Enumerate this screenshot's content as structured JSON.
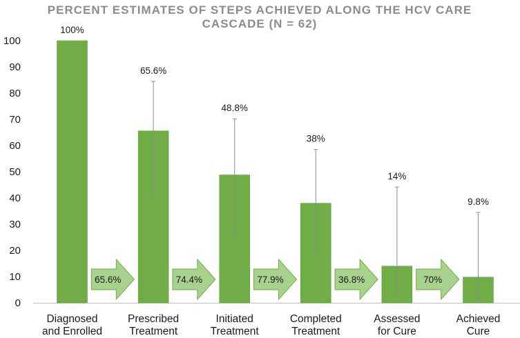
{
  "chart_data": {
    "type": "bar",
    "title_lines": [
      "PERCENT ESTIMATES OF STEPS ACHIEVED ALONG THE HCV CARE",
      "CASCADE (N = 62)"
    ],
    "categories": [
      [
        "Diagnosed",
        "and Enrolled"
      ],
      [
        "Prescribed",
        "Treatment"
      ],
      [
        "Initiated",
        "Treatment"
      ],
      [
        "Completed",
        "Treatment"
      ],
      [
        "Assessed",
        "for Cure"
      ],
      [
        "Achieved",
        "Cure"
      ]
    ],
    "values": [
      100,
      65.6,
      48.8,
      38,
      14,
      9.8
    ],
    "data_labels": [
      "100%",
      "65.6%",
      "48.8%",
      "38%",
      "14%",
      "9.8%"
    ],
    "error_bars": [
      null,
      [
        41.5,
        84.5
      ],
      [
        26,
        70.2
      ],
      [
        20,
        58.5
      ],
      [
        3.5,
        44.2
      ],
      [
        1.5,
        34.5
      ]
    ],
    "step_conversions": [
      "65.6%",
      "74.4%",
      "77.9%",
      "36.8%",
      "70%"
    ],
    "ylim": [
      0,
      100
    ],
    "yticks": [
      0,
      10,
      20,
      30,
      40,
      50,
      60,
      70,
      80,
      90,
      100
    ],
    "xlabel": "",
    "ylabel": "",
    "grid": false,
    "colors": {
      "bar": "#70ad47",
      "bar_edge": "#5e9a3a",
      "arrow_fill": "#a9d18e",
      "arrow_stroke": "#70ad47",
      "error_bar": "#8c8c8c",
      "axis": "#bfbfbf",
      "title": "#8c8c8c"
    }
  }
}
